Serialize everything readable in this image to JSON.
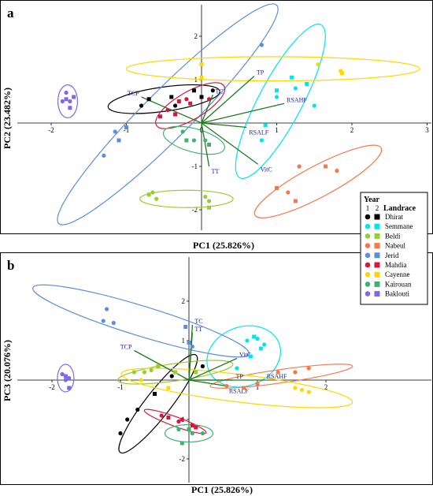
{
  "chart_data": [
    {
      "type": "scatter",
      "panel_label": "a",
      "xlabel": "PC1 (25.826%)",
      "ylabel": "PC2 (23.482%)",
      "xlim": [
        -2.3,
        3.2
      ],
      "ylim": [
        -2.5,
        2.6
      ],
      "x_ticks": [
        "-2",
        "-1",
        "0",
        "1",
        "2",
        "3"
      ],
      "y_ticks": [
        "2",
        "1",
        "-1",
        "-2"
      ],
      "grid": false,
      "vectors": [
        {
          "label": "TCP",
          "x": -0.8,
          "y": 0.6
        },
        {
          "label": "TC",
          "x": 0.15,
          "y": 0.65
        },
        {
          "label": "TP",
          "x": 0.7,
          "y": 1.08
        },
        {
          "label": "RSAHF",
          "x": 1.1,
          "y": 0.45
        },
        {
          "label": "RSALF",
          "x": 0.6,
          "y": -0.1
        },
        {
          "label": "VitC",
          "x": 0.75,
          "y": -0.95
        },
        {
          "label": "TT",
          "x": 0.1,
          "y": -1.0
        }
      ],
      "series": [
        {
          "name": "Dhirat",
          "color": "#000000",
          "ellipse": {
            "cx": -0.5,
            "cy": 0.55,
            "rx": 0.75,
            "ry": 0.28,
            "angle": 8
          },
          "year1": [
            [
              -0.8,
              0.4
            ],
            [
              -0.35,
              0.4
            ],
            [
              0.15,
              0.75
            ]
          ],
          "year2": [
            [
              -0.7,
              0.55
            ],
            [
              -0.4,
              0.6
            ],
            [
              -0.1,
              0.75
            ],
            [
              0.0,
              0.6
            ]
          ]
        },
        {
          "name": "Semmane",
          "color": "#00e5ee",
          "ellipse": {
            "cx": 1.05,
            "cy": 0.5,
            "rx": 1.15,
            "ry": 0.5,
            "angle": 62
          },
          "year1": [
            [
              0.8,
              -0.4
            ],
            [
              1.0,
              0.6
            ],
            [
              1.25,
              0.8
            ],
            [
              1.5,
              0.4
            ]
          ],
          "year2": [
            [
              0.85,
              -0.05
            ],
            [
              1.0,
              0.75
            ],
            [
              1.2,
              1.05
            ],
            [
              1.4,
              0.9
            ]
          ]
        },
        {
          "name": "Beldi",
          "color": "#9acd32",
          "ellipse": {
            "cx": -0.2,
            "cy": -1.75,
            "rx": 0.62,
            "ry": 0.2,
            "angle": 0
          },
          "year1": [
            [
              -0.65,
              -1.6
            ],
            [
              -0.6,
              -1.75
            ],
            [
              0.05,
              -1.7
            ],
            [
              0.1,
              -1.8
            ]
          ],
          "year2": [
            [
              -0.7,
              -1.65
            ],
            [
              0.1,
              -1.95
            ]
          ]
        },
        {
          "name": "Nabeul",
          "color": "#f4784a",
          "ellipse": {
            "cx": 1.55,
            "cy": -1.35,
            "rx": 0.95,
            "ry": 0.36,
            "angle": 28
          },
          "year1": [
            [
              1.3,
              -1.0
            ],
            [
              1.8,
              -1.1
            ],
            [
              1.15,
              -1.6
            ]
          ],
          "year2": [
            [
              1.65,
              -1.0
            ],
            [
              1.0,
              -1.5
            ],
            [
              1.25,
              -1.8
            ]
          ]
        },
        {
          "name": "Jerid",
          "color": "#5b8fd9",
          "ellipse": {
            "cx": -0.45,
            "cy": 0.2,
            "rx": 2.05,
            "ry": 0.55,
            "angle": 45
          },
          "year1": [
            [
              -1.15,
              -0.2
            ],
            [
              -1.3,
              -0.75
            ],
            [
              0.8,
              1.8
            ]
          ],
          "year2": [
            [
              -1.0,
              -0.1
            ],
            [
              -1.1,
              -0.4
            ]
          ]
        },
        {
          "name": "Mahdia",
          "color": "#dc143c",
          "ellipse": {
            "cx": -0.15,
            "cy": 0.4,
            "rx": 0.52,
            "ry": 0.32,
            "angle": 30
          },
          "year1": [
            [
              -0.2,
              0.55
            ],
            [
              -0.45,
              0.3
            ],
            [
              0.1,
              0.55
            ]
          ],
          "year2": [
            [
              -0.55,
              0.15
            ],
            [
              -0.3,
              0.5
            ],
            [
              -0.15,
              0.45
            ],
            [
              -0.35,
              0.2
            ]
          ]
        },
        {
          "name": "Cayenne",
          "color": "#ffd700",
          "ellipse": {
            "cx": 0.95,
            "cy": 1.25,
            "rx": 1.95,
            "ry": 0.28,
            "angle": 0
          },
          "year1": [
            [
              1.55,
              1.35
            ],
            [
              1.85,
              1.2
            ]
          ],
          "year2": [
            [
              0.0,
              1.35
            ],
            [
              0.0,
              1.05
            ],
            [
              1.87,
              1.15
            ]
          ]
        },
        {
          "name": "Kairouan",
          "color": "#3cb371",
          "ellipse": {
            "cx": -0.1,
            "cy": -0.4,
            "rx": 0.42,
            "ry": 0.27,
            "angle": -15
          },
          "year1": [
            [
              -0.1,
              -0.4
            ],
            [
              0.05,
              -0.4
            ],
            [
              -0.25,
              -0.2
            ]
          ],
          "year2": [
            [
              -0.2,
              -0.4
            ],
            [
              0.1,
              -0.5
            ]
          ]
        },
        {
          "name": "Baklouti",
          "color": "#7b68ee",
          "ellipse": {
            "cx": -1.78,
            "cy": 0.5,
            "rx": 0.13,
            "ry": 0.38,
            "angle": 0
          },
          "year1": [
            [
              -1.8,
              0.7
            ],
            [
              -1.85,
              0.5
            ],
            [
              -1.75,
              0.5
            ]
          ],
          "year2": [
            [
              -1.75,
              0.35
            ],
            [
              -1.8,
              0.55
            ],
            [
              -1.7,
              0.6
            ]
          ]
        }
      ]
    },
    {
      "type": "scatter",
      "panel_label": "b",
      "xlabel": "PC1 (25.826%)",
      "ylabel": "PC3 (20.076%)",
      "xlim": [
        -2.3,
        3.2
      ],
      "ylim": [
        -2.6,
        2.6
      ],
      "x_ticks": [
        "-2",
        "-1",
        "1",
        "2"
      ],
      "y_ticks": [
        "2",
        "1",
        "-1",
        "-2"
      ],
      "grid": false,
      "vectors": [
        {
          "label": "TC",
          "x": 0.05,
          "y": 1.4
        },
        {
          "label": "TT",
          "x": 0.05,
          "y": 1.2
        },
        {
          "label": "TCP",
          "x": -0.8,
          "y": 0.75
        },
        {
          "label": "VitC",
          "x": 0.7,
          "y": 0.55
        },
        {
          "label": "TP",
          "x": 0.65,
          "y": 0.0
        },
        {
          "label": "RSAHF",
          "x": 1.1,
          "y": 0.0
        },
        {
          "label": "RSALF",
          "x": 0.55,
          "y": -0.15
        }
      ],
      "series": [
        {
          "name": "Dhirat",
          "color": "#000000",
          "ellipse": {
            "cx": -0.45,
            "cy": -0.6,
            "rx": 0.9,
            "ry": 0.32,
            "angle": 52
          },
          "year1": [
            [
              -0.9,
              -1.0
            ],
            [
              -1.0,
              -1.35
            ],
            [
              -0.75,
              -0.75
            ],
            [
              -0.25,
              0.1
            ],
            [
              0.2,
              0.35
            ]
          ],
          "year2": [
            [
              -0.5,
              -0.35
            ]
          ]
        },
        {
          "name": "Semmane",
          "color": "#00e5ee",
          "ellipse": {
            "cx": 0.8,
            "cy": 0.6,
            "rx": 0.55,
            "ry": 0.75,
            "angle": 20
          },
          "year1": [
            [
              0.7,
              0.3
            ],
            [
              0.85,
              1.0
            ],
            [
              1.0,
              1.05
            ],
            [
              1.1,
              0.9
            ]
          ],
          "year2": [
            [
              0.9,
              0.6
            ],
            [
              1.05,
              0.8
            ],
            [
              0.95,
              1.1
            ]
          ]
        },
        {
          "name": "Beldi",
          "color": "#9acd32",
          "ellipse": {
            "cx": -0.2,
            "cy": 0.2,
            "rx": 0.85,
            "ry": 0.22,
            "angle": 8
          },
          "year1": [
            [
              -0.65,
              0.2
            ],
            [
              -0.8,
              0.2
            ],
            [
              -0.55,
              0.25
            ]
          ],
          "year2": [
            [
              -0.45,
              0.35
            ],
            [
              -0.2,
              0.2
            ],
            [
              0.1,
              0.2
            ]
          ]
        },
        {
          "name": "Nabeul",
          "color": "#f4784a",
          "ellipse": {
            "cx": 1.35,
            "cy": 0.1,
            "rx": 1.05,
            "ry": 0.17,
            "angle": 8
          },
          "year1": [
            [
              1.3,
              0.2
            ],
            [
              1.55,
              0.2
            ],
            [
              1.75,
              0.3
            ],
            [
              0.55,
              -0.15
            ]
          ],
          "year2": [
            [
              1.0,
              -0.1
            ],
            [
              0.8,
              -0.2
            ]
          ]
        },
        {
          "name": "Jerid",
          "color": "#5b8fd9",
          "ellipse": {
            "cx": -0.7,
            "cy": 1.5,
            "rx": 1.65,
            "ry": 0.38,
            "angle": -17
          },
          "year1": [
            [
              -1.2,
              1.8
            ],
            [
              -1.25,
              1.5
            ],
            [
              -1.1,
              1.45
            ],
            [
              0.05,
              0.85
            ]
          ],
          "year2": [
            [
              -0.05,
              1.35
            ],
            [
              0.0,
              0.95
            ]
          ]
        },
        {
          "name": "Mahdia",
          "color": "#dc143c",
          "ellipse": {
            "cx": -0.2,
            "cy": -1.05,
            "rx": 0.48,
            "ry": 0.12,
            "angle": -20
          },
          "year1": [
            [
              -0.4,
              -0.9
            ],
            [
              -0.15,
              -1.05
            ],
            [
              -0.1,
              -1.0
            ]
          ],
          "year2": [
            [
              -0.3,
              -0.95
            ],
            [
              0.1,
              -1.2
            ],
            [
              0.05,
              -1.15
            ]
          ]
        },
        {
          "name": "Cayenne",
          "color": "#ffd700",
          "ellipse": {
            "cx": 0.7,
            "cy": -0.2,
            "rx": 1.7,
            "ry": 0.35,
            "angle": -7
          },
          "year1": [
            [
              -0.7,
              0.0
            ],
            [
              1.55,
              -0.2
            ],
            [
              1.65,
              -0.25
            ],
            [
              1.75,
              -0.3
            ]
          ],
          "year2": [
            [
              -0.3,
              -0.2
            ]
          ]
        },
        {
          "name": "Kairouan",
          "color": "#3cb371",
          "ellipse": {
            "cx": 0.0,
            "cy": -1.35,
            "rx": 0.35,
            "ry": 0.22,
            "angle": 0
          },
          "year1": [
            [
              -0.15,
              -1.25
            ],
            [
              0.05,
              -1.35
            ],
            [
              0.2,
              -1.35
            ]
          ],
          "year2": [
            [
              -0.1,
              -1.6
            ],
            [
              0.0,
              -1.25
            ]
          ]
        },
        {
          "name": "Baklouti",
          "color": "#7b68ee",
          "ellipse": {
            "cx": -1.8,
            "cy": 0.05,
            "rx": 0.12,
            "ry": 0.35,
            "angle": 0
          },
          "year1": [
            [
              -1.85,
              0.15
            ],
            [
              -1.8,
              0.0
            ],
            [
              -1.75,
              0.05
            ]
          ],
          "year2": [
            [
              -1.75,
              -0.2
            ],
            [
              -1.8,
              0.1
            ]
          ]
        }
      ]
    }
  ],
  "legend": {
    "title": "Year",
    "col1": "1",
    "col2": "2",
    "subtitle": "Landrace",
    "placement": "right"
  }
}
